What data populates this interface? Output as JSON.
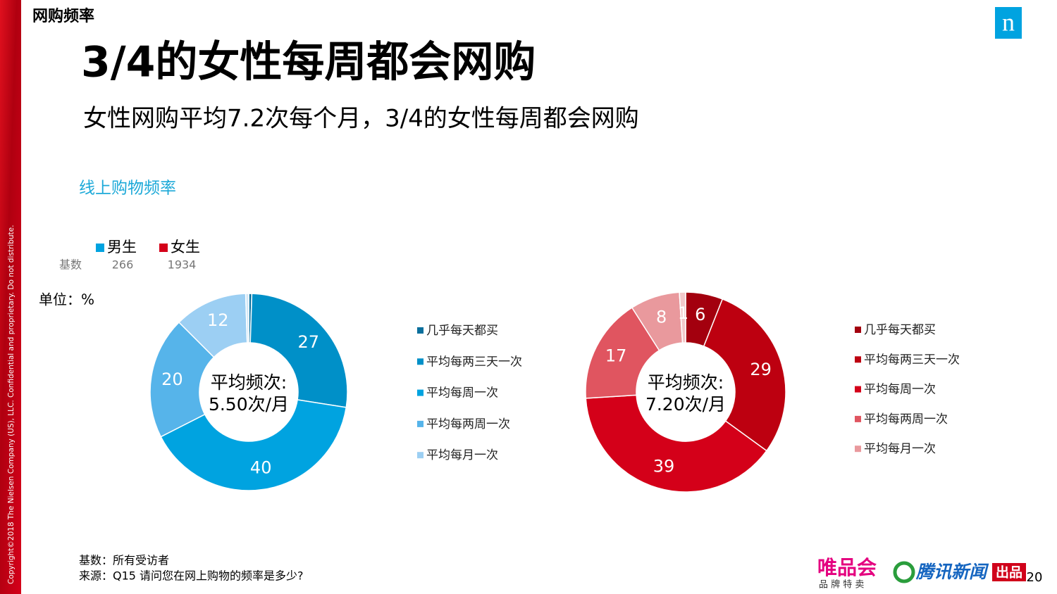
{
  "header": {
    "section": "网购频率",
    "title": "3/4的女性每周都会网购",
    "subtitle": "女性网购平均7.2次每个月，3/4的女性每周都会网购",
    "logo": "n"
  },
  "chart_caption": "线上购物频率",
  "base_label": "基数",
  "unit": "单位：%",
  "chart_data": [
    {
      "type": "donut",
      "name": "男生",
      "base": 266,
      "center_label": [
        "平均频次:",
        "5.50次/月"
      ],
      "categories": [
        "几乎每天都买",
        "平均每两三天一次",
        "平均每周一次",
        "平均每两周一次",
        "平均每月一次",
        null
      ],
      "values": [
        0.5,
        27,
        40,
        20,
        12,
        0.5
      ],
      "value_labels": [
        null,
        "27",
        "40",
        "20",
        "12",
        null
      ],
      "colors": [
        "#0a6f9c",
        "#0090c8",
        "#00a3e0",
        "#56b4ea",
        "#9ccff3",
        "#cfe6f6"
      ]
    },
    {
      "type": "donut",
      "name": "女生",
      "base": 1934,
      "center_label": [
        "平均频次:",
        "7.20次/月"
      ],
      "categories": [
        "几乎每天都买",
        "平均每两三天一次",
        "平均每周一次",
        "平均每两周一次",
        "平均每月一次",
        null
      ],
      "values": [
        6,
        29,
        39,
        17,
        8,
        1
      ],
      "colors": [
        "#a3000e",
        "#bd0010",
        "#d40019",
        "#e05560",
        "#e9999d",
        "#f2c8ca"
      ]
    }
  ],
  "footer": {
    "base": "基数：所有受访者",
    "source": "来源：Q15 请问您在网上购物的频率是多少?",
    "copyright": "Copyright©2018 The Nielsen Company (US), LLC. Confidential and proprietary. Do not distribute.",
    "brand1": "唯品会",
    "brand1_sub": "品 牌 特 卖",
    "brand2": "腾讯新闻",
    "brand2_tag": "出品",
    "page": "20"
  }
}
